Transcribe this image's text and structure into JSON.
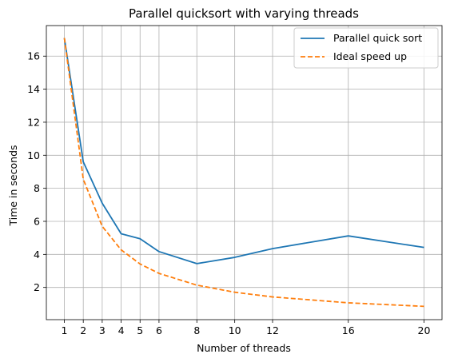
{
  "chart_data": {
    "type": "line",
    "title": "Parallel quicksort with varying threads",
    "xlabel": "Number of threads",
    "ylabel": "Time in seconds",
    "xlim": [
      0.05,
      20.95
    ],
    "ylim": [
      0.05,
      17.85
    ],
    "xticks": [
      1,
      2,
      3,
      4,
      5,
      6,
      8,
      10,
      12,
      16,
      20
    ],
    "yticks": [
      2,
      4,
      6,
      8,
      10,
      12,
      14,
      16
    ],
    "grid": true,
    "legend_position": "upper right",
    "x": [
      1,
      2,
      3,
      4,
      5,
      6,
      8,
      10,
      12,
      16,
      20
    ],
    "series": [
      {
        "name": "Parallel quick sort",
        "values": [
          17.1,
          9.6,
          7.1,
          5.25,
          4.95,
          4.17,
          3.44,
          3.82,
          4.35,
          5.12,
          4.42
        ],
        "color": "#1f77b4",
        "style": "solid"
      },
      {
        "name": "Ideal speed up",
        "values": [
          17.1,
          8.55,
          5.7,
          4.275,
          3.42,
          2.85,
          2.1375,
          1.71,
          1.425,
          1.06875,
          0.855
        ],
        "color": "#ff7f0e",
        "style": "dashed"
      }
    ]
  }
}
